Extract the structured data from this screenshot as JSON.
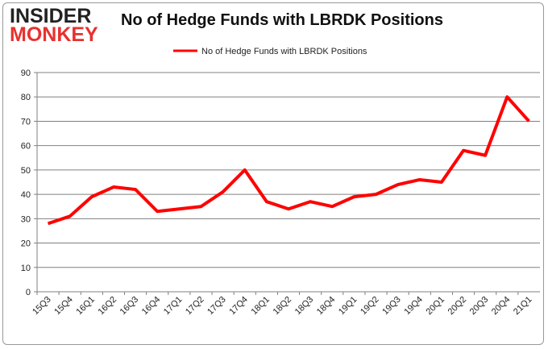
{
  "logo": {
    "line1": "INSIDER",
    "line2": "MONKEY"
  },
  "colors": {
    "series": "#ff0000",
    "grid": "#808080"
  },
  "chart_data": {
    "type": "line",
    "title": "No of Hedge Funds with LBRDK Positions",
    "xlabel": "",
    "ylabel": "",
    "legend": {
      "position": "top-center",
      "entries": [
        "No of Hedge Funds with LBRDK Positions"
      ]
    },
    "grid": true,
    "ylim": [
      0,
      90
    ],
    "yticks": [
      0,
      10,
      20,
      30,
      40,
      50,
      60,
      70,
      80,
      90
    ],
    "categories": [
      "15Q3",
      "15Q4",
      "16Q1",
      "16Q2",
      "16Q3",
      "16Q4",
      "17Q1",
      "17Q2",
      "17Q3",
      "17Q4",
      "18Q1",
      "18Q2",
      "18Q3",
      "18Q4",
      "19Q1",
      "19Q2",
      "19Q3",
      "19Q4",
      "20Q1",
      "20Q2",
      "20Q3",
      "20Q4",
      "21Q1"
    ],
    "series": [
      {
        "name": "No of Hedge Funds with LBRDK Positions",
        "values": [
          28,
          31,
          39,
          43,
          42,
          33,
          34,
          35,
          41,
          50,
          37,
          34,
          37,
          35,
          39,
          40,
          44,
          46,
          45,
          58,
          56,
          80,
          70
        ]
      }
    ]
  }
}
